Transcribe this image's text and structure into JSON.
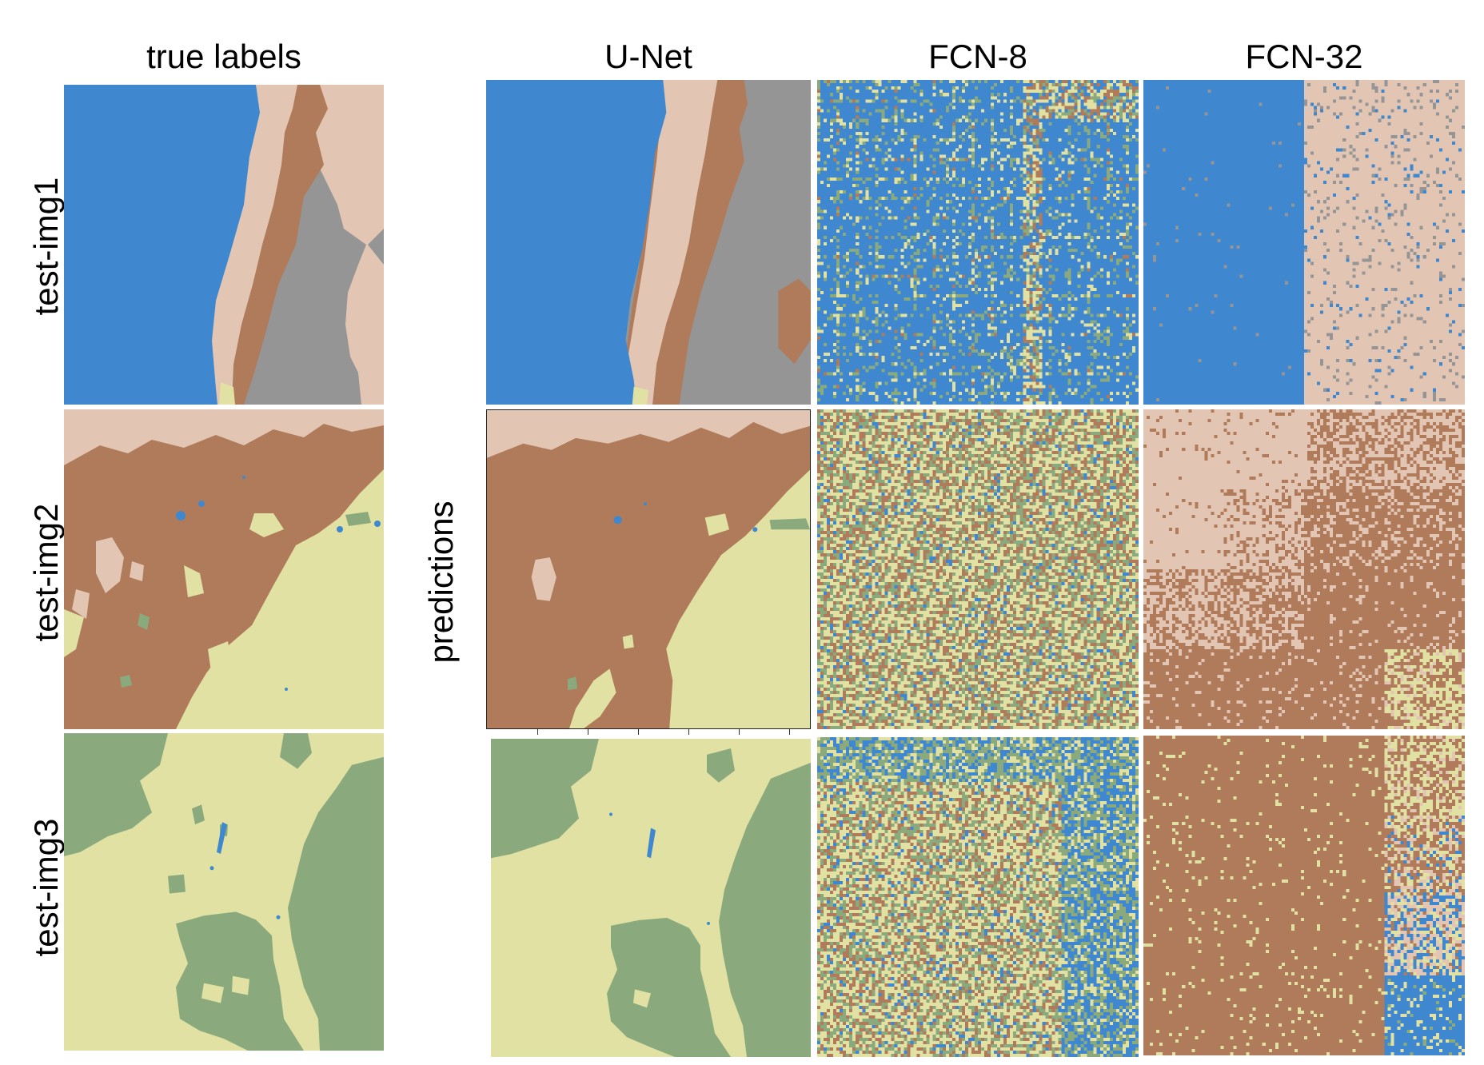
{
  "figure": {
    "column_titles": {
      "true_labels": "true labels",
      "unet": "U-Net",
      "fcn8": "FCN-8",
      "fcn32": "FCN-32"
    },
    "row_labels": [
      "test-img1",
      "test-img2",
      "test-img3"
    ],
    "side_label": "predictions"
  },
  "palette": {
    "water": "#3f88d0",
    "sand": "#e2c6b3",
    "soil": "#b07b5a",
    "rock": "#959595",
    "grass": "#e0e1a3",
    "vegetation": "#8aaa7e"
  }
}
